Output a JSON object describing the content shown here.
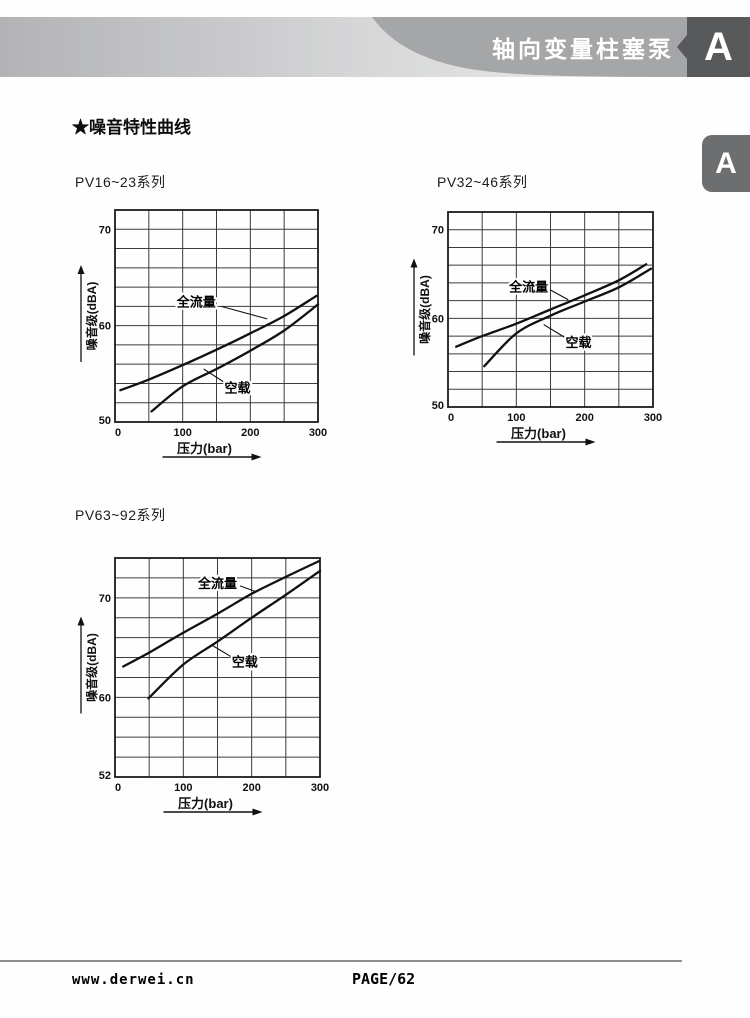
{
  "header": {
    "banner_title": "轴向变量柱塞泵",
    "section_letter": "A",
    "side_tab_letter": "A",
    "colors": {
      "band_from": "#b2b3b5",
      "band_to": "#eeeeef",
      "swoosh": "#a5a6a8",
      "dark_box": "#58595b",
      "side_tab": "#6d6e70",
      "header_text": "#ffffff"
    }
  },
  "section_title": "★噪音特性曲线",
  "footer": {
    "site_url": "www.derwei.cn",
    "page_label": "PAGE/62"
  },
  "chart_colors": {
    "curve": "#111111",
    "grid": "#3c3c3c",
    "frame": "#1c1c1c"
  },
  "chart_data": [
    {
      "type": "line",
      "title": "PV16~23系列",
      "xlabel": "压力(bar)",
      "ylabel": "噪音级(dBA)",
      "xlim": [
        0,
        300
      ],
      "ylim": [
        50,
        72
      ],
      "x_ticks": [
        0,
        100,
        200,
        300
      ],
      "y_ticks": [
        50,
        60,
        70
      ],
      "x_grid_step": 50,
      "y_grid_step": 2,
      "grid": true,
      "legend_position": "inline-labels",
      "series": [
        {
          "key": "full-flow",
          "name": "全流量",
          "points": [
            [
              8,
              53.3
            ],
            [
              50,
              54.4
            ],
            [
              100,
              55.9
            ],
            [
              150,
              57.5
            ],
            [
              200,
              59.2
            ],
            [
              250,
              61.0
            ],
            [
              298,
              63.1
            ]
          ],
          "label_pos": [
            120,
            62.4
          ],
          "leader": [
            [
              157,
              62.0
            ],
            [
              225,
              60.7
            ]
          ]
        },
        {
          "key": "no-load",
          "name": "空载",
          "points": [
            [
              54,
              51.1
            ],
            [
              100,
              53.7
            ],
            [
              150,
              55.5
            ],
            [
              200,
              57.4
            ],
            [
              250,
              59.5
            ],
            [
              300,
              62.2
            ]
          ],
          "label_pos": [
            181,
            53.5
          ],
          "leader": [
            [
              162,
              54.1
            ],
            [
              131,
              55.5
            ]
          ]
        }
      ]
    },
    {
      "type": "line",
      "title": "PV32~46系列",
      "xlabel": "压力(bar)",
      "ylabel": "噪音级(dBA)",
      "xlim": [
        0,
        300
      ],
      "ylim": [
        50,
        72
      ],
      "x_ticks": [
        0,
        100,
        200,
        300
      ],
      "y_ticks": [
        50,
        60,
        70
      ],
      "x_grid_step": 50,
      "y_grid_step": 2,
      "grid": true,
      "legend_position": "inline-labels",
      "series": [
        {
          "key": "full-flow",
          "name": "全流量",
          "points": [
            [
              12,
              56.8
            ],
            [
              50,
              58.0
            ],
            [
              100,
              59.4
            ],
            [
              150,
              61.0
            ],
            [
              200,
              62.6
            ],
            [
              250,
              64.3
            ],
            [
              290,
              66.1
            ]
          ],
          "label_pos": [
            118,
            63.5
          ],
          "leader": [
            [
              150,
              63.2
            ],
            [
              176,
              62.1
            ]
          ]
        },
        {
          "key": "no-load",
          "name": "空载",
          "points": [
            [
              53,
              54.6
            ],
            [
              100,
              58.3
            ],
            [
              150,
              60.3
            ],
            [
              200,
              61.9
            ],
            [
              250,
              63.5
            ],
            [
              297,
              65.6
            ]
          ],
          "label_pos": [
            191,
            57.2
          ],
          "leader": [
            [
              172,
              57.8
            ],
            [
              140,
              59.3
            ]
          ]
        }
      ]
    },
    {
      "type": "line",
      "title": "PV63~92系列",
      "xlabel": "压力(bar)",
      "ylabel": "噪音级(dBA)",
      "xlim": [
        0,
        300
      ],
      "ylim": [
        52,
        74
      ],
      "x_ticks": [
        0,
        100,
        200,
        300
      ],
      "y_ticks": [
        52,
        60,
        70
      ],
      "x_grid_step": 50,
      "y_grid_step": 2,
      "grid": true,
      "legend_position": "inline-labels",
      "series": [
        {
          "key": "full-flow",
          "name": "全流量",
          "points": [
            [
              12,
              63.1
            ],
            [
              50,
              64.5
            ],
            [
              100,
              66.5
            ],
            [
              150,
              68.4
            ],
            [
              200,
              70.4
            ],
            [
              250,
              72.1
            ],
            [
              299,
              73.7
            ]
          ],
          "label_pos": [
            150,
            71.4
          ],
          "leader": [
            [
              183,
              71.2
            ],
            [
              207,
              70.6
            ]
          ]
        },
        {
          "key": "no-load",
          "name": "空载",
          "points": [
            [
              49,
              59.9
            ],
            [
              100,
              63.3
            ],
            [
              150,
              65.6
            ],
            [
              200,
              68.0
            ],
            [
              250,
              70.3
            ],
            [
              300,
              72.7
            ]
          ],
          "label_pos": [
            190,
            63.5
          ],
          "leader": [
            [
              172,
              64.0
            ],
            [
              143,
              65.2
            ]
          ]
        }
      ]
    }
  ]
}
